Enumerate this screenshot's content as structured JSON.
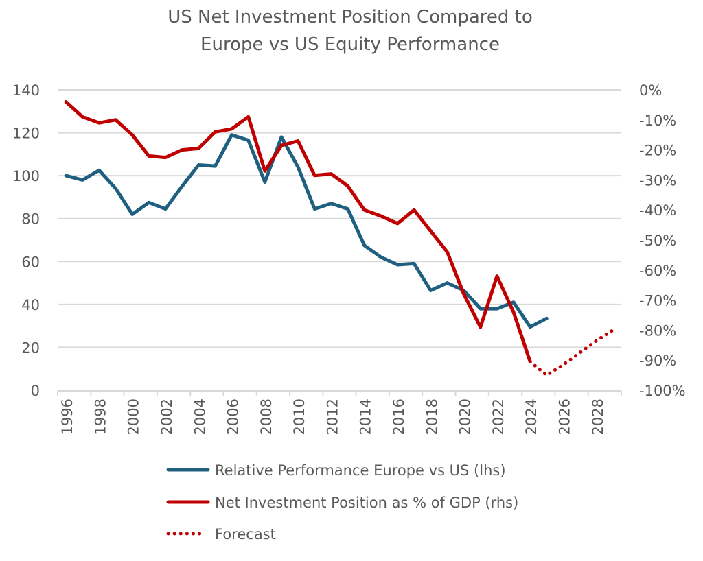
{
  "chart_data": {
    "type": "line",
    "title": [
      "US Net Investment Position Compared to",
      "Europe vs US Equity Performance"
    ],
    "xlabel": "",
    "ylabel_left": "",
    "ylabel_right": "",
    "x_range": [
      1996,
      2029
    ],
    "x_tick_labels": [
      "1996",
      "1998",
      "2000",
      "2002",
      "2004",
      "2006",
      "2008",
      "2010",
      "2012",
      "2014",
      "2016",
      "2018",
      "2020",
      "2022",
      "2024",
      "2026",
      "2028"
    ],
    "y_left": {
      "range": [
        0,
        140
      ],
      "ticks": [
        0,
        20,
        40,
        60,
        80,
        100,
        120,
        140
      ],
      "tick_labels": [
        "0",
        "20",
        "40",
        "60",
        "80",
        "100",
        "120",
        "140"
      ]
    },
    "y_right": {
      "range": [
        -100,
        0
      ],
      "ticks": [
        0,
        -10,
        -20,
        -30,
        -40,
        -50,
        -60,
        -70,
        -80,
        -90,
        -100
      ],
      "tick_labels": [
        "0%",
        "-10%",
        "-20%",
        "-30%",
        "-40%",
        "-50%",
        "-60%",
        "-70%",
        "-80%",
        "-90%",
        "-100%"
      ]
    },
    "grid": "horizontal",
    "legend_position": "bottom",
    "series": [
      {
        "name": "Relative Performance Europe vs US (lhs)",
        "axis": "left",
        "style": "solid",
        "color": "#1F5F7F",
        "x": [
          1996,
          1997,
          1998,
          1999,
          2000,
          2001,
          2002,
          2003,
          2004,
          2005,
          2006,
          2007,
          2008,
          2009,
          2010,
          2011,
          2012,
          2013,
          2014,
          2015,
          2016,
          2017,
          2018,
          2019,
          2020,
          2021,
          2022,
          2023,
          2024,
          2025
        ],
        "values": [
          100,
          98,
          102.5,
          94,
          82,
          87.5,
          84.5,
          95,
          105,
          104.5,
          119,
          116.5,
          97,
          118,
          104,
          84.5,
          87,
          84.5,
          67.5,
          62,
          58.5,
          59,
          46.5,
          50,
          46.5,
          38,
          38,
          41,
          29.5,
          33.5
        ]
      },
      {
        "name": "Net Investment Position as % of GDP (rhs)",
        "axis": "right",
        "style": "solid",
        "color": "#C00000",
        "x": [
          1996,
          1997,
          1998,
          1999,
          2000,
          2001,
          2002,
          2003,
          2004,
          2005,
          2006,
          2007,
          2008,
          2009,
          2010,
          2011,
          2012,
          2013,
          2014,
          2015,
          2016,
          2017,
          2018,
          2019,
          2020,
          2021,
          2022,
          2023,
          2024
        ],
        "values": [
          -4,
          -9,
          -11,
          -10,
          -15,
          -22,
          -22.5,
          -20,
          -19.5,
          -14,
          -13,
          -9,
          -27,
          -18.5,
          -17,
          -28.5,
          -28,
          -32,
          -40,
          -42,
          -44.5,
          -40,
          -47,
          -54,
          -68,
          -79,
          -62,
          -74,
          -90.5
        ]
      },
      {
        "name": "Forecast",
        "axis": "right",
        "style": "dotted",
        "color": "#C00000",
        "x": [
          2024,
          2025,
          2026,
          2027,
          2028,
          2029
        ],
        "values": [
          -90.5,
          -95,
          -91.5,
          -87.5,
          -83.5,
          -80
        ]
      }
    ]
  }
}
